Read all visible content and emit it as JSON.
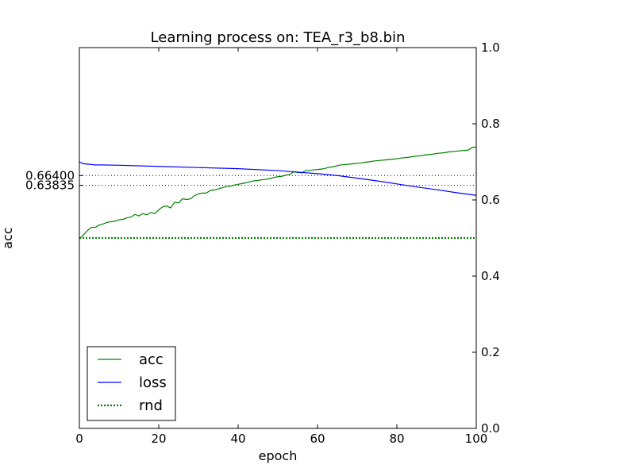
{
  "chart_data": {
    "type": "line",
    "title": "Learning process on: TEA_r3_b8.bin",
    "xlabel": "epoch",
    "ylabel": "acc",
    "xlim": [
      0,
      100
    ],
    "ylim": [
      0,
      1
    ],
    "x_ticks": [
      "0",
      "20",
      "40",
      "60",
      "80",
      "100"
    ],
    "right_y_ticks": [
      "0.0",
      "0.2",
      "0.4",
      "0.6",
      "0.8",
      "1.0"
    ],
    "left_y_ticks": [
      {
        "value": 0.664,
        "label": "0.66400"
      },
      {
        "value": 0.63835,
        "label": "0.63835"
      }
    ],
    "grid": false,
    "legend_position": "lower-left",
    "series": [
      {
        "name": "acc",
        "color": "#008000",
        "style": "solid",
        "x": [
          0,
          1,
          2,
          3,
          4,
          5,
          6,
          7,
          8,
          9,
          10,
          11,
          12,
          13,
          14,
          15,
          16,
          17,
          18,
          19,
          20,
          21,
          22,
          23,
          24,
          25,
          26,
          27,
          28,
          29,
          30,
          31,
          32,
          33,
          34,
          35,
          36,
          37,
          38,
          39,
          40,
          41,
          42,
          43,
          44,
          45,
          46,
          47,
          48,
          49,
          50,
          51,
          52,
          53,
          54,
          55,
          56,
          57,
          58,
          59,
          60,
          61,
          62,
          63,
          64,
          65,
          66,
          67,
          68,
          69,
          70,
          71,
          72,
          73,
          74,
          75,
          76,
          77,
          78,
          79,
          80,
          81,
          82,
          83,
          84,
          85,
          86,
          87,
          88,
          89,
          90,
          91,
          92,
          93,
          94,
          95,
          96,
          97,
          98,
          99,
          100
        ],
        "y": [
          0.498,
          0.508,
          0.519,
          0.528,
          0.528,
          0.534,
          0.537,
          0.541,
          0.543,
          0.544,
          0.548,
          0.549,
          0.553,
          0.555,
          0.562,
          0.558,
          0.564,
          0.561,
          0.567,
          0.564,
          0.574,
          0.582,
          0.584,
          0.579,
          0.594,
          0.592,
          0.603,
          0.601,
          0.603,
          0.611,
          0.616,
          0.618,
          0.618,
          0.625,
          0.626,
          0.629,
          0.632,
          0.635,
          0.636,
          0.639,
          0.641,
          0.643,
          0.645,
          0.648,
          0.65,
          0.651,
          0.653,
          0.654,
          0.656,
          0.659,
          0.661,
          0.662,
          0.665,
          0.667,
          0.674,
          0.672,
          0.671,
          0.677,
          0.677,
          0.679,
          0.68,
          0.681,
          0.683,
          0.686,
          0.687,
          0.69,
          0.692,
          0.693,
          0.694,
          0.695,
          0.696,
          0.697,
          0.699,
          0.7,
          0.702,
          0.703,
          0.704,
          0.705,
          0.706,
          0.707,
          0.708,
          0.71,
          0.711,
          0.712,
          0.714,
          0.715,
          0.716,
          0.718,
          0.719,
          0.72,
          0.722,
          0.723,
          0.724,
          0.726,
          0.727,
          0.728,
          0.729,
          0.73,
          0.731,
          0.738,
          0.739
        ]
      },
      {
        "name": "loss",
        "color": "#0000ff",
        "style": "solid",
        "x": [
          0,
          1,
          2,
          3,
          4,
          5,
          10,
          20,
          30,
          40,
          50,
          55,
          60,
          65,
          70,
          75,
          80,
          85,
          90,
          95,
          100
        ],
        "y": [
          0.7,
          0.695,
          0.694,
          0.693,
          0.692,
          0.692,
          0.691,
          0.688,
          0.685,
          0.682,
          0.677,
          0.673,
          0.669,
          0.664,
          0.657,
          0.65,
          0.642,
          0.634,
          0.627,
          0.619,
          0.612
        ]
      },
      {
        "name": "rnd",
        "color": "#008000",
        "style": "dotted",
        "x": [
          0,
          100
        ],
        "y": [
          0.5,
          0.5
        ]
      }
    ],
    "reference_lines": [
      {
        "y": 0.664,
        "color": "#000000",
        "style": "dotted"
      },
      {
        "y": 0.63835,
        "color": "#000000",
        "style": "dotted"
      }
    ]
  }
}
